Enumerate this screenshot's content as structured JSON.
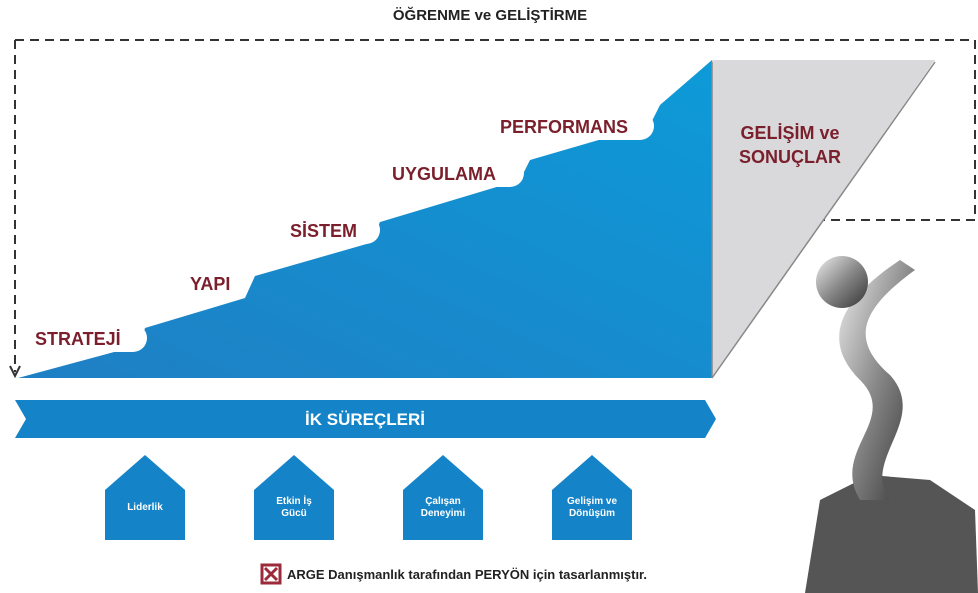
{
  "header": {
    "title": "ÖĞRENME ve GELİŞTİRME"
  },
  "steps": [
    "STRATEJİ",
    "YAPI",
    "SİSTEM",
    "UYGULAMA",
    "PERFORMANS"
  ],
  "result": {
    "lines": [
      "GELİŞİM ve",
      "SONUÇLAR"
    ]
  },
  "band": {
    "label": "İK SÜREÇLERİ"
  },
  "processes": [
    {
      "lines": [
        "Liderlik"
      ]
    },
    {
      "lines": [
        "Etkin İş",
        "Gücü"
      ]
    },
    {
      "lines": [
        "Çalışan",
        "Deneyimi"
      ]
    },
    {
      "lines": [
        "Gelişim ve",
        "Dönüşüm"
      ]
    }
  ],
  "footer": {
    "text": "ARGE Danışmanlık tarafından PERYÖN için tasarlanmıştır."
  }
}
